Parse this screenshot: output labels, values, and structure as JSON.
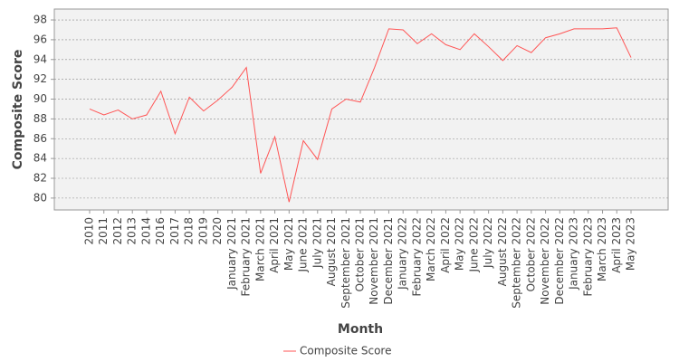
{
  "chart_data": {
    "type": "line",
    "x_label": "Month",
    "y_label": "Composite Score",
    "categories": [
      "2010",
      "2011",
      "2012",
      "2013",
      "2014",
      "2016",
      "2017",
      "2018",
      "2019",
      "2020",
      "January 2021",
      "February 2021",
      "March 2021",
      "April 2021",
      "May 2021",
      "June 2021",
      "July 2021",
      "August 2021",
      "September 2021",
      "October 2021",
      "November 2021",
      "December 2021",
      "January 2022",
      "February 2022",
      "March 2022",
      "April 2022",
      "May 2022",
      "June 2022",
      "July 2022",
      "August 2022",
      "September 2022",
      "October 2022",
      "November 2022",
      "December 2022",
      "January 2023",
      "February 2023",
      "March 2023",
      "April 2023",
      "May 2023"
    ],
    "series": [
      {
        "name": "Composite Score",
        "color": "#ff5555",
        "values": [
          89.0,
          88.4,
          88.9,
          88.0,
          88.4,
          90.8,
          86.5,
          90.2,
          88.8,
          89.9,
          91.2,
          93.2,
          82.5,
          86.2,
          79.6,
          85.8,
          83.9,
          89.0,
          90.0,
          89.7,
          93.2,
          97.1,
          97.0,
          95.6,
          96.6,
          95.5,
          95.0,
          96.6,
          95.3,
          93.9,
          95.4,
          94.7,
          96.2,
          96.6,
          97.1,
          97.1,
          97.1,
          97.2,
          94.2
        ]
      }
    ],
    "ylim": [
      78.8,
      99.1
    ],
    "yticks": [
      80,
      82,
      84,
      86,
      88,
      90,
      92,
      94,
      96,
      98
    ],
    "grid": true,
    "legend": "bottom"
  }
}
